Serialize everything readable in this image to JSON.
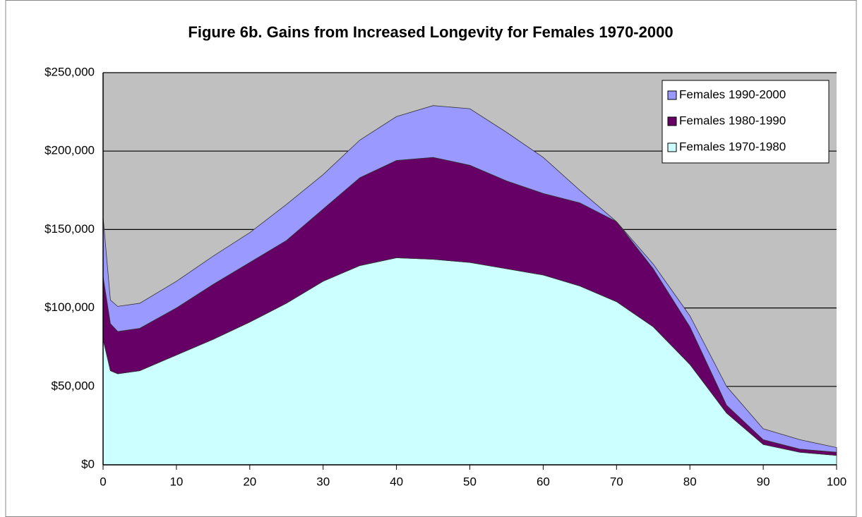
{
  "chart_data": {
    "type": "stacked-area",
    "title": "Figure 6b. Gains from Increased Longevity for Females 1970-2000",
    "x": [
      0,
      1,
      2,
      5,
      10,
      15,
      20,
      25,
      30,
      35,
      40,
      45,
      50,
      55,
      60,
      65,
      70,
      75,
      80,
      85,
      90,
      95,
      100
    ],
    "series": [
      {
        "name": "Females 1970-1980",
        "color": "#ccffff",
        "values": [
          80000,
          60000,
          58000,
          60000,
          70000,
          80000,
          91000,
          103000,
          117000,
          127000,
          132000,
          131000,
          129000,
          125000,
          121000,
          114000,
          104000,
          88000,
          64000,
          33000,
          13000,
          8000,
          6000
        ]
      },
      {
        "name": "Females 1980-1990",
        "color": "#660066",
        "values": [
          40000,
          30000,
          27000,
          27000,
          30000,
          35000,
          38000,
          40000,
          46000,
          56000,
          62000,
          65000,
          62000,
          56000,
          52000,
          53000,
          51000,
          37000,
          24000,
          5000,
          3000,
          2000,
          2000
        ]
      },
      {
        "name": "Females 1990-2000",
        "color": "#9999ff",
        "values": [
          38000,
          15000,
          16000,
          16000,
          17000,
          18000,
          19000,
          23000,
          22000,
          24000,
          28000,
          33000,
          36000,
          31000,
          23000,
          8000,
          0,
          3000,
          7000,
          12000,
          7000,
          6000,
          3000
        ]
      }
    ],
    "xlim": [
      0,
      100
    ],
    "xticks": [
      0,
      10,
      20,
      30,
      40,
      50,
      60,
      70,
      80,
      90,
      100
    ],
    "ylim": [
      0,
      250000
    ],
    "yticks": [
      {
        "value": 0,
        "label": "$0"
      },
      {
        "value": 50000,
        "label": "$50,000"
      },
      {
        "value": 100000,
        "label": "$100,000"
      },
      {
        "value": 150000,
        "label": "$150,000"
      },
      {
        "value": 200000,
        "label": "$200,000"
      },
      {
        "value": 250000,
        "label": "$250,000"
      }
    ],
    "grid": true,
    "legend": "top-right",
    "plot_background": "#c0c0c0"
  }
}
